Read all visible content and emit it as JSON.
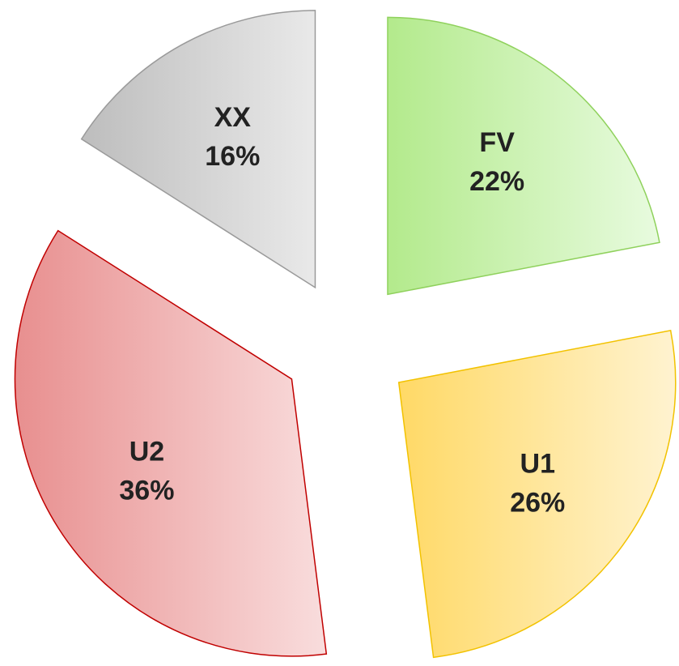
{
  "chart_data": {
    "type": "pie",
    "categories": [
      "FV",
      "U1",
      "U2",
      "XX"
    ],
    "values": [
      22,
      26,
      36,
      16
    ],
    "value_labels": [
      "22%",
      "26%",
      "36%",
      "16%"
    ],
    "colors": [
      [
        "#b3ea8c",
        "#e8fbdf",
        "#8fd15c"
      ],
      [
        "#ffd966",
        "#fff3d0",
        "#f2c200"
      ],
      [
        "#e88f8f",
        "#f9dddd",
        "#c00000"
      ],
      [
        "#bdbdbd",
        "#e9e9e9",
        "#9a9a9a"
      ]
    ],
    "exploded": true
  }
}
